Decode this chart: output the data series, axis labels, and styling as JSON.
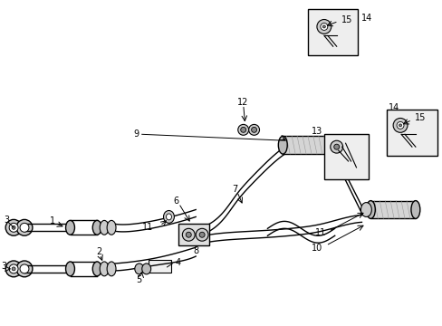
{
  "bg_color": "#ffffff",
  "line_color": "#000000",
  "box_bg": "#e8e8e8",
  "pipe_color": "#888888",
  "fs": 7.0
}
